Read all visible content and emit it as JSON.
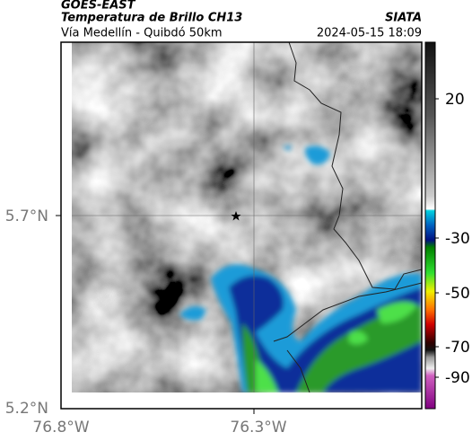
{
  "header": {
    "source": "GOES-EAST",
    "title": "Temperatura de Brillo CH13",
    "agency": "SIATA",
    "subtitle": "Vía Medellín - Quibdó 50km",
    "timestamp": "2024-05-15 18:09"
  },
  "axes": {
    "lat_labels": [
      "5.7°N",
      "5.2°N"
    ],
    "lon_labels": [
      "76.8°W",
      "76.3°W"
    ]
  },
  "colorbar": {
    "ticks": [
      "20",
      "-30",
      "-50",
      "-70",
      "-90"
    ]
  }
}
